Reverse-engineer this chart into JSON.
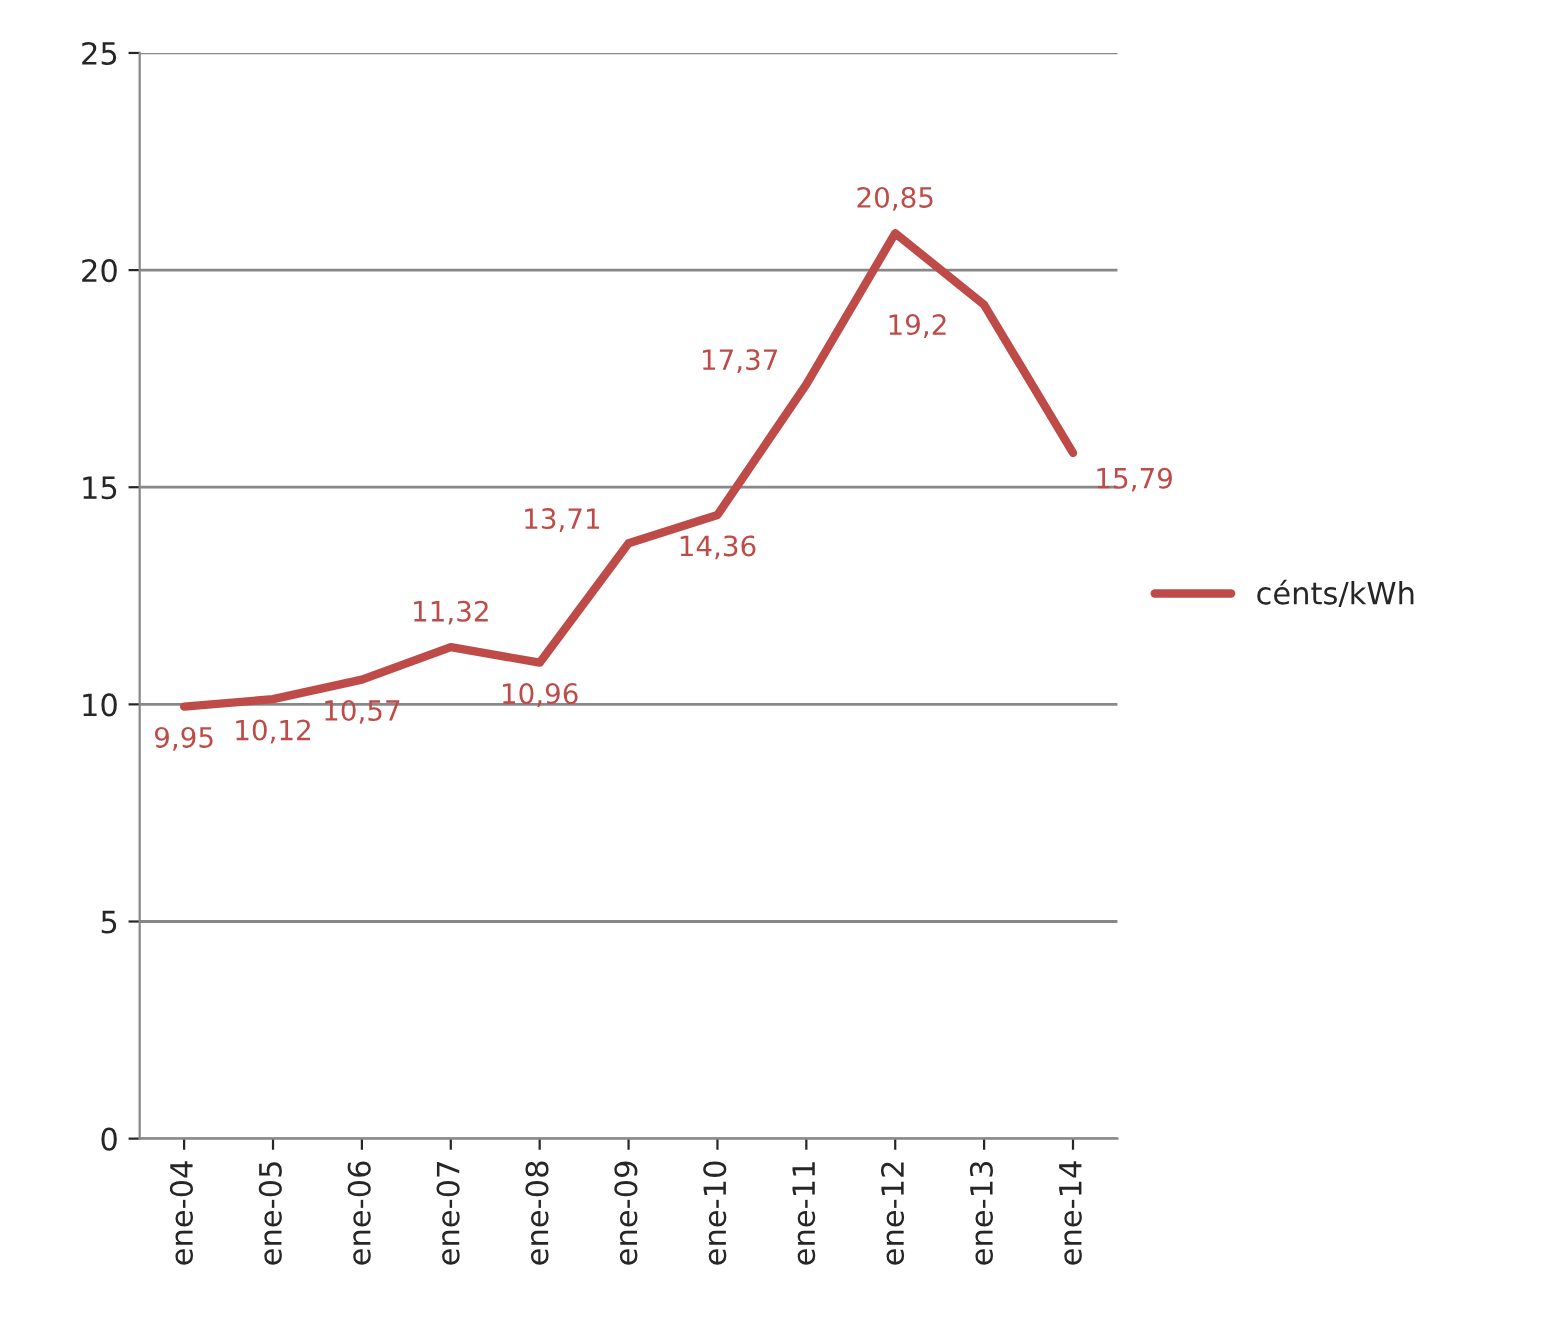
{
  "chart_data": {
    "type": "line",
    "categories": [
      "ene-04",
      "ene-05",
      "ene-06",
      "ene-07",
      "ene-08",
      "ene-09",
      "ene-10",
      "ene-11",
      "ene-12",
      "ene-13",
      "ene-14"
    ],
    "series": [
      {
        "name": "cénts/kWh",
        "color": "#be4b48",
        "values": [
          9.95,
          10.12,
          10.57,
          11.32,
          10.96,
          13.71,
          14.36,
          17.37,
          20.85,
          19.2,
          15.79
        ],
        "value_labels": [
          "9,95",
          "10,12",
          "10,57",
          "11,32",
          "10,96",
          "13,71",
          "14,36",
          "17,37",
          "20,85",
          "19,2",
          "15,79"
        ]
      }
    ],
    "ylim": [
      0,
      25
    ],
    "yticks": [
      0,
      5,
      10,
      15,
      20,
      25
    ],
    "grid": "y",
    "legend": "right",
    "marker": "none",
    "line_style": "solid"
  }
}
